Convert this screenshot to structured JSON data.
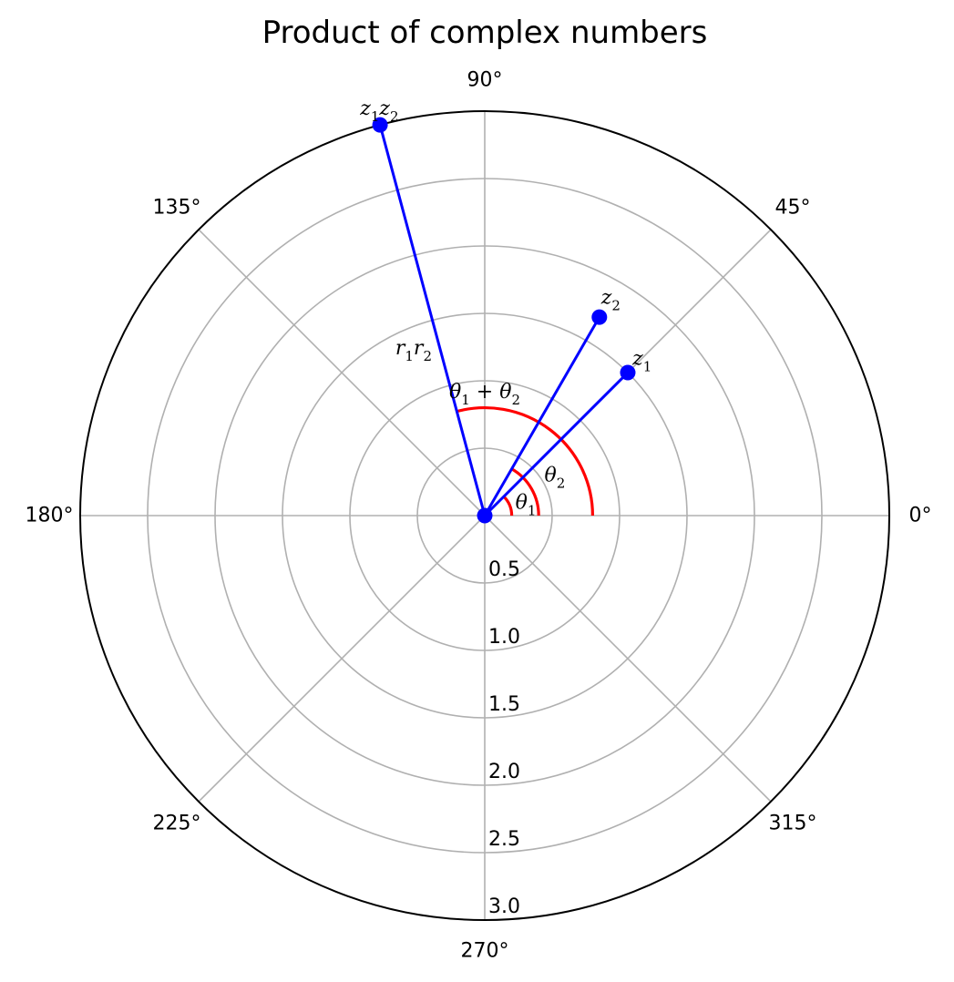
{
  "chart_data": {
    "type": "polar",
    "title": "Product of complex numbers",
    "angle_unit": "degrees",
    "theta_ticks": [
      {
        "value": 0,
        "label": "0°"
      },
      {
        "value": 45,
        "label": "45°"
      },
      {
        "value": 90,
        "label": "90°"
      },
      {
        "value": 135,
        "label": "135°"
      },
      {
        "value": 180,
        "label": "180°"
      },
      {
        "value": 225,
        "label": "225°"
      },
      {
        "value": 270,
        "label": "270°"
      },
      {
        "value": 315,
        "label": "315°"
      }
    ],
    "r_ticks": [
      {
        "value": 0.5,
        "label": "0.5"
      },
      {
        "value": 1.0,
        "label": "1.0"
      },
      {
        "value": 1.5,
        "label": "1.5"
      },
      {
        "value": 2.0,
        "label": "2.0"
      },
      {
        "value": 2.5,
        "label": "2.5"
      },
      {
        "value": 3.0,
        "label": "3.0"
      }
    ],
    "rlim": [
      0,
      3.0
    ],
    "r_label_angle": 270,
    "grid": true,
    "colors": {
      "vector": "#0000ff",
      "angle_arc": "#ff0000",
      "grid": "#b0b0b0",
      "frame": "#000000"
    },
    "vectors": [
      {
        "id": "z1",
        "r": 1.5,
        "theta_deg": 45
      },
      {
        "id": "z2",
        "r": 1.7,
        "theta_deg": 60
      },
      {
        "id": "z1z2",
        "r": 3.0,
        "theta_deg": 105
      }
    ],
    "angle_arcs": [
      {
        "id": "theta1",
        "r": 0.2,
        "from_deg": 0,
        "to_deg": 45
      },
      {
        "id": "theta2",
        "r": 0.4,
        "from_deg": 0,
        "to_deg": 60
      },
      {
        "id": "theta_sum",
        "r": 0.8,
        "from_deg": 0,
        "to_deg": 105
      }
    ],
    "annotations": [
      {
        "id": "z1",
        "base": "z",
        "sub": "1",
        "r": 1.65,
        "theta_deg": 45
      },
      {
        "id": "z2",
        "base": "z",
        "sub": "2",
        "r": 1.87,
        "theta_deg": 60
      },
      {
        "id": "z1z2",
        "parts": [
          {
            "base": "z",
            "sub": "1"
          },
          {
            "base": "z",
            "sub": "2"
          }
        ],
        "r": 3.12,
        "theta_deg": 104.5
      },
      {
        "id": "r1r2",
        "parts": [
          {
            "base": "r",
            "sub": "1"
          },
          {
            "base": "r",
            "sub": "2"
          }
        ],
        "r": 1.35,
        "theta_deg": 113
      },
      {
        "id": "theta1",
        "base": "θ",
        "sub": "1",
        "r": 0.32,
        "theta_deg": 18
      },
      {
        "id": "theta2",
        "base": "θ",
        "sub": "2",
        "r": 0.6,
        "theta_deg": 30
      },
      {
        "id": "theta_sum",
        "parts": [
          {
            "base": "θ",
            "sub": "1"
          },
          {
            "plain": " + "
          },
          {
            "base": "θ",
            "sub": "2"
          }
        ],
        "r": 0.92,
        "theta_deg": 90
      }
    ]
  }
}
